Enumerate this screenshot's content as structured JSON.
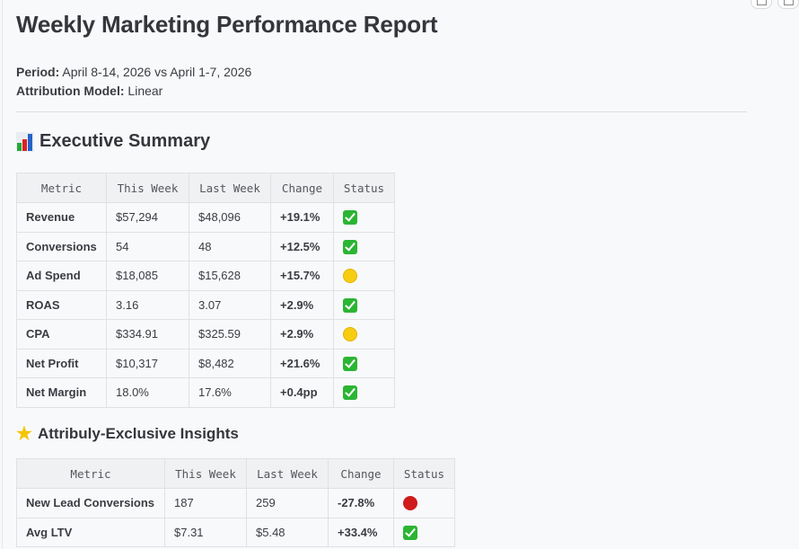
{
  "title": "Weekly Marketing Performance Report",
  "meta": {
    "period_label": "Period:",
    "period_value": "April 8-14, 2026 vs April 1-7, 2026",
    "attribution_label": "Attribution Model:",
    "attribution_value": "Linear"
  },
  "executive_summary": {
    "icon": "bar-chart-icon",
    "heading": "Executive Summary",
    "columns": [
      "Metric",
      "This Week",
      "Last Week",
      "Change",
      "Status"
    ],
    "rows": [
      {
        "metric": "Revenue",
        "this_week": "$57,294",
        "last_week": "$48,096",
        "change": "+19.1%",
        "status": "green-check"
      },
      {
        "metric": "Conversions",
        "this_week": "54",
        "last_week": "48",
        "change": "+12.5%",
        "status": "green-check"
      },
      {
        "metric": "Ad Spend",
        "this_week": "$18,085",
        "last_week": "$15,628",
        "change": "+15.7%",
        "status": "yellow-circle"
      },
      {
        "metric": "ROAS",
        "this_week": "3.16",
        "last_week": "3.07",
        "change": "+2.9%",
        "status": "green-check"
      },
      {
        "metric": "CPA",
        "this_week": "$334.91",
        "last_week": "$325.59",
        "change": "+2.9%",
        "status": "yellow-circle"
      },
      {
        "metric": "Net Profit",
        "this_week": "$10,317",
        "last_week": "$8,482",
        "change": "+21.6%",
        "status": "green-check"
      },
      {
        "metric": "Net Margin",
        "this_week": "18.0%",
        "last_week": "17.6%",
        "change": "+0.4pp",
        "status": "green-check"
      }
    ]
  },
  "insights": {
    "icon": "glowing-star-icon",
    "heading": "Attribuly-Exclusive Insights",
    "columns": [
      "Metric",
      "This Week",
      "Last Week",
      "Change",
      "Status"
    ],
    "rows": [
      {
        "metric": "New Lead Conversions",
        "this_week": "187",
        "last_week": "259",
        "change": "-27.8%",
        "status": "red-circle"
      },
      {
        "metric": "Avg LTV",
        "this_week": "$7.31",
        "last_week": "$5.48",
        "change": "+33.4%",
        "status": "green-check"
      }
    ]
  },
  "colors": {
    "green": "#2bb533",
    "yellow": "#f7cd12",
    "red": "#cf1b1b"
  }
}
